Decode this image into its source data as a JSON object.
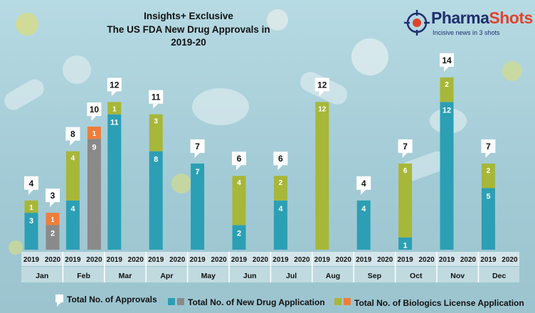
{
  "header": {
    "title_line1": "Insights+ Exclusive",
    "title_line2": "The US FDA New Drug Approvals in 2019-20"
  },
  "logo": {
    "name_part1": "Pharma",
    "name_part2": "Shots",
    "tagline": "Incisive news in 3 shots"
  },
  "colors": {
    "nda_2019": "#2c9fb4",
    "nda_2020": "#8a8a8a",
    "bla_2019": "#a7b739",
    "bla_2020": "#ef7d3a",
    "label_box": "#ffffff"
  },
  "legend": {
    "total": "Total No. of Approvals",
    "nda": "Total No. of New Drug Application",
    "bla": "Total No. of Biologics License Application"
  },
  "chart_data": {
    "type": "bar",
    "stacked": true,
    "title": "The US FDA New Drug Approvals in 2019-20",
    "months": [
      "Jan",
      "Feb",
      "Mar",
      "Apr",
      "May",
      "Jun",
      "Jul",
      "Aug",
      "Sep",
      "Oct",
      "Nov",
      "Dec"
    ],
    "years": [
      "2019",
      "2020"
    ],
    "series": [
      {
        "name": "Total No. of New Drug Application",
        "values_2019": [
          3,
          4,
          11,
          8,
          7,
          2,
          4,
          0,
          4,
          1,
          12,
          5
        ],
        "values_2020": [
          2,
          9,
          null,
          null,
          null,
          null,
          null,
          null,
          null,
          null,
          null,
          null
        ]
      },
      {
        "name": "Total No. of Biologics License Application",
        "values_2019": [
          1,
          4,
          1,
          3,
          0,
          4,
          2,
          12,
          0,
          6,
          2,
          2
        ],
        "values_2020": [
          1,
          1,
          null,
          null,
          null,
          null,
          null,
          null,
          null,
          null,
          null,
          null
        ]
      }
    ],
    "totals_2019": [
      4,
      8,
      12,
      11,
      7,
      6,
      6,
      12,
      4,
      7,
      14,
      7
    ],
    "totals_2020": [
      3,
      10,
      null,
      null,
      null,
      null,
      null,
      null,
      null,
      null,
      null,
      null
    ],
    "ylim": [
      0,
      15
    ],
    "grid": false,
    "legend_position": "bottom"
  }
}
